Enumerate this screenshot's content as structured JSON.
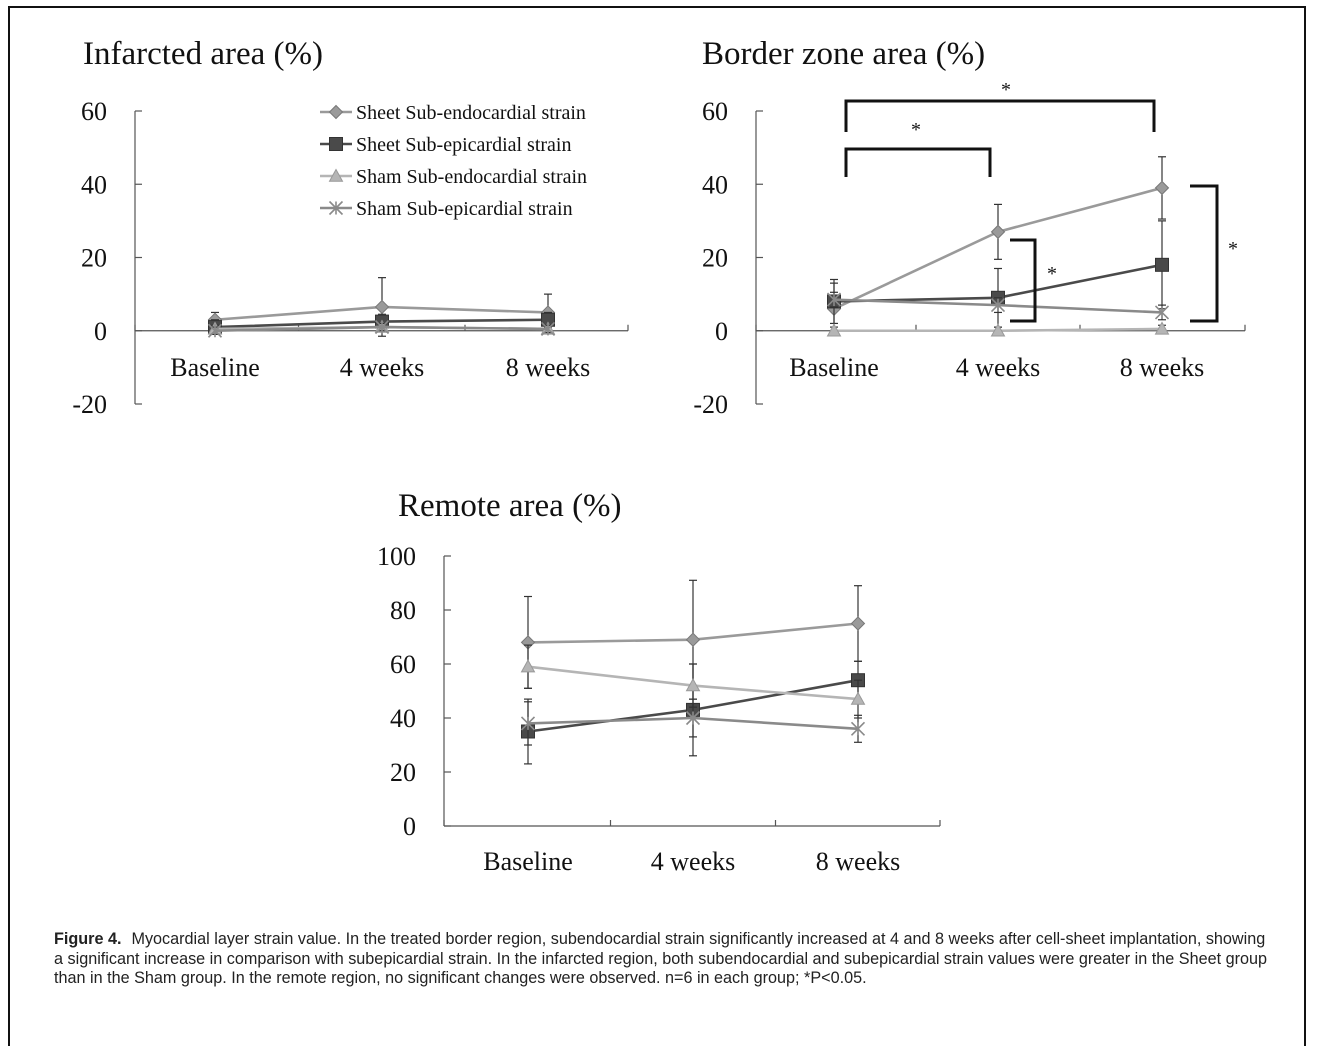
{
  "chart_data": [
    {
      "type": "line",
      "title": "Infarcted area (%)",
      "categories": [
        "Baseline",
        "4 weeks",
        "8 weeks"
      ],
      "ylim": [
        -20,
        60
      ],
      "yticks": [
        "60",
        "40",
        "20",
        "0",
        "-20"
      ],
      "legend": "top-right",
      "series": [
        {
          "name": "Sheet Sub-endocardial strain",
          "values": [
            3,
            6.5,
            5
          ],
          "err": [
            2,
            8,
            5
          ],
          "color": "#9a9a9a",
          "marker": "diamond"
        },
        {
          "name": "Sheet Sub-epicardial strain",
          "values": [
            1,
            2.5,
            3
          ],
          "err": [
            2,
            2,
            2
          ],
          "color": "#4a4a4a",
          "marker": "square"
        },
        {
          "name": "Sham Sub-endocardial strain",
          "values": [
            0.5,
            1,
            0.5
          ],
          "err": [
            1,
            1,
            1
          ],
          "color": "#b5b5b5",
          "marker": "triangle"
        },
        {
          "name": "Sham Sub-epicardial strain",
          "values": [
            0,
            1,
            0.5
          ],
          "err": [
            1,
            1,
            1
          ],
          "color": "#8a8a8a",
          "marker": "x"
        }
      ]
    },
    {
      "type": "line",
      "title": "Border zone area (%)",
      "categories": [
        "Baseline",
        "4 weeks",
        "8 weeks"
      ],
      "ylim": [
        -20,
        60
      ],
      "yticks": [
        "60",
        "40",
        "20",
        "0",
        "-20"
      ],
      "series": [
        {
          "name": "Sheet Sub-endocardial strain",
          "values": [
            6,
            27,
            39
          ],
          "err": [
            7,
            7.5,
            8.5
          ],
          "color": "#9a9a9a",
          "marker": "diamond"
        },
        {
          "name": "Sheet Sub-epicardial strain",
          "values": [
            8,
            9,
            18
          ],
          "err": [
            6,
            8,
            12
          ],
          "color": "#4a4a4a",
          "marker": "square"
        },
        {
          "name": "Sham Sub-endocardial strain",
          "values": [
            0,
            0,
            0.5
          ],
          "err": [
            1,
            1,
            1
          ],
          "color": "#b5b5b5",
          "marker": "triangle"
        },
        {
          "name": "Sham Sub-epicardial strain",
          "values": [
            8.5,
            7,
            5
          ],
          "err": [
            2,
            2,
            2
          ],
          "color": "#8a8a8a",
          "marker": "x"
        }
      ],
      "annotations": [
        "*",
        "*",
        "*",
        "*"
      ]
    },
    {
      "type": "line",
      "title": "Remote area (%)",
      "categories": [
        "Baseline",
        "4 weeks",
        "8 weeks"
      ],
      "ylim": [
        0,
        100
      ],
      "yticks": [
        "100",
        "80",
        "60",
        "40",
        "20",
        "0"
      ],
      "series": [
        {
          "name": "Sheet Sub-endocardial strain",
          "values": [
            68,
            69,
            75
          ],
          "err": [
            17,
            22,
            14
          ],
          "color": "#9a9a9a",
          "marker": "diamond"
        },
        {
          "name": "Sheet Sub-epicardial strain",
          "values": [
            35,
            43,
            54
          ],
          "err": [
            12,
            17,
            7
          ],
          "color": "#4a4a4a",
          "marker": "square"
        },
        {
          "name": "Sham Sub-endocardial strain",
          "values": [
            59,
            52,
            47
          ],
          "err": [
            8,
            8,
            7
          ],
          "color": "#b5b5b5",
          "marker": "triangle"
        },
        {
          "name": "Sham Sub-epicardial strain",
          "values": [
            38,
            40,
            36
          ],
          "err": [
            8,
            7,
            5
          ],
          "color": "#8a8a8a",
          "marker": "x"
        }
      ]
    }
  ],
  "caption": {
    "label": "Figure 4.",
    "text": "Myocardial layer strain value. In the treated border region, subendocardial strain significantly increased at 4 and 8 weeks after cell-sheet implantation, showing a significant increase in comparison with subepicardial strain. In the infarcted region, both subendocardial and subepicardial strain values were greater in the Sheet group than in the Sham group. In the remote region, no significant changes were observed. n=6 in each group; *P<0.05."
  }
}
